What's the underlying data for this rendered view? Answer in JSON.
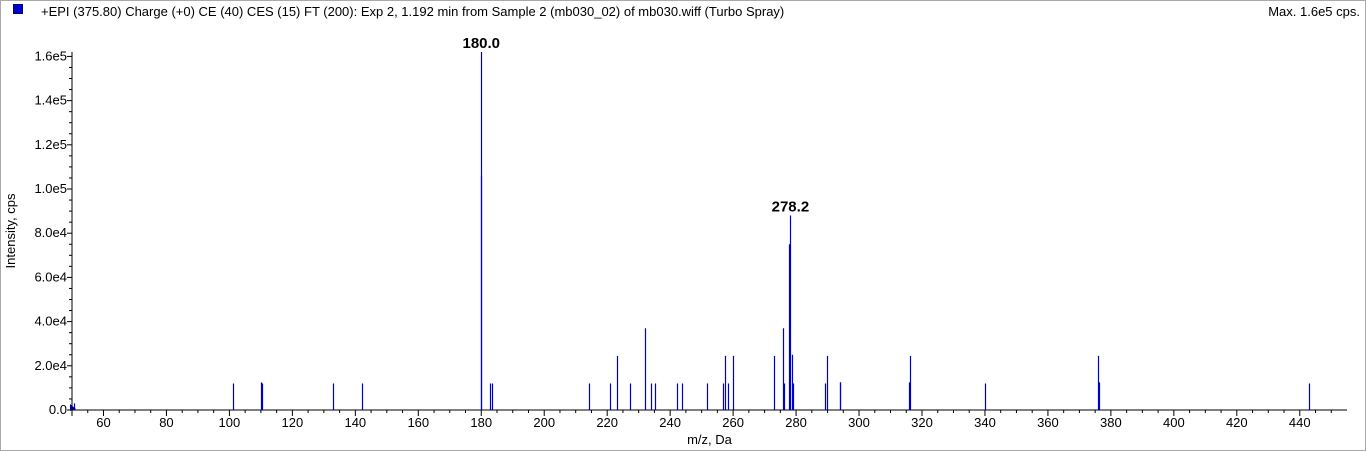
{
  "header": {
    "title": "+EPI (375.80) Charge (+0) CE (40) CES (15) FT (200): Exp 2, 1.192 min from Sample 2 (mb030_02) of mb030.wiff (Turbo Spray)",
    "max_label": "Max. 1.6e5 cps."
  },
  "colors": {
    "series": "#0000cc",
    "swatch": "#0000cc",
    "axis": "#000000"
  },
  "chart_data": {
    "type": "bar",
    "title": "+EPI (375.80) Charge (+0) CE (40) CES (15) FT (200): Exp 2, 1.192 min from Sample 2 (mb030_02) of mb030.wiff (Turbo Spray)",
    "xlabel": "m/z, Da",
    "ylabel": "Intensity, cps",
    "xlim": [
      50,
      455
    ],
    "ylim": [
      0,
      162000
    ],
    "x_ticks": [
      60,
      80,
      100,
      120,
      140,
      160,
      180,
      200,
      220,
      240,
      260,
      280,
      300,
      320,
      340,
      360,
      380,
      400,
      420,
      440
    ],
    "x_tick_labels": [
      "60",
      "80",
      "100",
      "120",
      "140",
      "160",
      "180",
      "200",
      "220",
      "240",
      "260",
      "280",
      "300",
      "320",
      "340",
      "360",
      "380",
      "400",
      "420",
      "440"
    ],
    "y_ticks": [
      0,
      20000,
      40000,
      60000,
      80000,
      100000,
      120000,
      140000,
      160000
    ],
    "y_tick_labels": [
      "0.0",
      "2.0e4",
      "4.0e4",
      "6.0e4",
      "8.0e4",
      "1.0e5",
      "1.2e5",
      "1.4e5",
      "1.6e5"
    ],
    "grid": false,
    "series": [
      {
        "x": [
          50.5,
          101.0,
          110.0,
          110.3,
          132.9,
          142.0,
          179.9,
          180.0,
          182.9,
          183.4,
          214.2,
          221.0,
          223.1,
          227.2,
          231.9,
          233.8,
          235.2,
          242.2,
          243.9,
          251.8,
          256.9,
          257.3,
          258.3,
          259.9,
          273.0,
          275.9,
          276.2,
          277.9,
          278.2,
          278.6,
          279.1,
          289.2,
          289.8,
          293.9,
          294.1,
          315.9,
          316.1,
          340.0,
          375.8,
          376.2,
          443.0
        ],
        "y": [
          3000,
          12000,
          12500,
          12000,
          12000,
          12000,
          106000,
          162000,
          12000,
          12000,
          12000,
          12000,
          24500,
          12000,
          37000,
          12000,
          12000,
          12000,
          12000,
          12000,
          12000,
          24500,
          12000,
          24500,
          24500,
          37000,
          12000,
          75000,
          88000,
          25000,
          12000,
          12000,
          24500,
          12500,
          12500,
          12500,
          24500,
          12000,
          24500,
          12500,
          12000
        ]
      }
    ],
    "annotations": [
      {
        "x": 180.0,
        "y": 162000,
        "text": "180.0"
      },
      {
        "x": 278.2,
        "y": 88000,
        "text": "278.2"
      }
    ]
  }
}
